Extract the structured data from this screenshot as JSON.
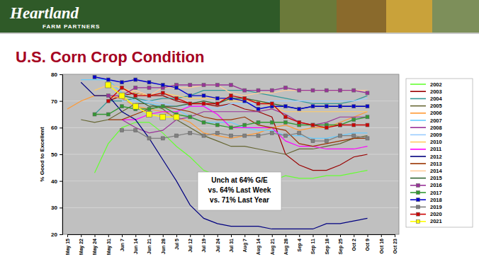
{
  "header": {
    "brand": "Heartland",
    "tagline": "FARM PARTNERS"
  },
  "chart_data": {
    "type": "line",
    "title": "U.S. Corn Crop Condition",
    "y_label": "% Good to Excellent",
    "categories": [
      "May 15",
      "May 22",
      "May 24",
      "May 31",
      "Jun 7",
      "Jun 14",
      "Jun 21",
      "Jun 28",
      "Jul 5",
      "Jul 12",
      "Jul 19",
      "Jul 24",
      "Jul 31",
      "Aug 7",
      "Aug 14",
      "Aug 21",
      "Aug 28",
      "Sep 4",
      "Sep 11",
      "Sep 18",
      "Sep 25",
      "Oct 2",
      "Oct 9",
      "Oct 16",
      "Oct 23"
    ],
    "series": [
      {
        "name": "2002",
        "color": "#66ff33",
        "values": [
          null,
          null,
          43,
          54,
          60,
          62,
          62,
          58,
          53,
          49,
          44,
          42,
          41,
          40,
          39,
          40,
          42,
          41,
          41,
          42,
          42,
          43,
          44,
          null,
          null
        ]
      },
      {
        "name": "2003",
        "color": "#990000",
        "values": [
          null,
          null,
          null,
          70,
          72,
          73,
          72,
          72,
          70,
          69,
          69,
          68,
          69,
          67,
          66,
          64,
          50,
          46,
          44,
          44,
          46,
          49,
          50,
          null,
          null
        ]
      },
      {
        "name": "2004",
        "color": "#339999",
        "values": [
          null,
          null,
          65,
          70,
          70,
          71,
          70,
          71,
          71,
          72,
          74,
          74,
          74,
          74,
          73,
          72,
          71,
          70,
          69,
          69,
          69,
          70,
          72,
          null,
          null
        ]
      },
      {
        "name": "2005",
        "color": "#666633",
        "values": [
          null,
          63,
          62,
          63,
          66,
          69,
          69,
          67,
          63,
          60,
          57,
          55,
          53,
          53,
          52,
          51,
          50,
          52,
          52,
          53,
          54,
          56,
          57,
          null,
          null
        ]
      },
      {
        "name": "2006",
        "color": "#ff9933",
        "values": [
          67,
          70,
          72,
          72,
          71,
          68,
          67,
          66,
          64,
          62,
          58,
          57,
          56,
          57,
          58,
          60,
          61,
          59,
          60,
          60,
          62,
          64,
          66,
          null,
          null
        ]
      },
      {
        "name": "2007",
        "color": "#66ccff",
        "values": [
          null,
          78,
          78,
          78,
          73,
          70,
          69,
          68,
          67,
          64,
          62,
          62,
          62,
          60,
          59,
          59,
          57,
          57,
          56,
          56,
          57,
          58,
          58,
          null,
          null
        ]
      },
      {
        "name": "2008",
        "color": "#993399",
        "values": [
          null,
          null,
          null,
          null,
          63,
          60,
          58,
          59,
          63,
          64,
          66,
          66,
          66,
          66,
          66,
          67,
          65,
          62,
          61,
          62,
          64,
          64,
          64,
          null,
          null
        ]
      },
      {
        "name": "2009",
        "color": "#99ccff",
        "values": [
          null,
          null,
          null,
          null,
          70,
          70,
          70,
          69,
          68,
          68,
          68,
          67,
          69,
          69,
          69,
          70,
          70,
          70,
          70,
          70,
          70,
          70,
          71,
          null,
          null
        ]
      },
      {
        "name": "2010",
        "color": "#ffcc66",
        "values": [
          null,
          null,
          74,
          76,
          75,
          73,
          72,
          73,
          72,
          71,
          71,
          71,
          70,
          70,
          70,
          68,
          66,
          66,
          66,
          66,
          66,
          66,
          66,
          null,
          null
        ]
      },
      {
        "name": "2011",
        "color": "#ff00ff",
        "values": [
          null,
          null,
          null,
          null,
          63,
          63,
          65,
          66,
          66,
          68,
          68,
          65,
          60,
          60,
          60,
          60,
          55,
          53,
          53,
          52,
          52,
          52,
          53,
          null,
          null
        ]
      },
      {
        "name": "2012",
        "color": "#000080",
        "values": [
          null,
          77,
          72,
          72,
          66,
          63,
          56,
          48,
          40,
          31,
          26,
          24,
          23,
          23,
          23,
          22,
          22,
          22,
          22,
          24,
          24,
          25,
          26,
          null,
          null
        ]
      },
      {
        "name": "2013",
        "color": "#993300",
        "values": [
          null,
          null,
          null,
          63,
          63,
          65,
          67,
          68,
          67,
          66,
          64,
          63,
          63,
          64,
          61,
          60,
          59,
          54,
          53,
          54,
          55,
          56,
          56,
          null,
          null
        ]
      },
      {
        "name": "2014",
        "color": "#ffcc99",
        "values": [
          null,
          null,
          null,
          null,
          74,
          74,
          72,
          75,
          75,
          75,
          76,
          76,
          73,
          72,
          73,
          73,
          74,
          74,
          74,
          74,
          74,
          74,
          74,
          null,
          null
        ]
      },
      {
        "name": "2015",
        "color": "#336633",
        "values": [
          null,
          null,
          null,
          null,
          72,
          71,
          68,
          68,
          68,
          69,
          70,
          69,
          71,
          71,
          70,
          69,
          68,
          67,
          68,
          68,
          68,
          68,
          68,
          null,
          null
        ]
      },
      {
        "name": "2016",
        "color": "#993399",
        "marker": "square",
        "values": [
          null,
          null,
          null,
          72,
          72,
          75,
          75,
          75,
          76,
          76,
          76,
          76,
          76,
          74,
          74,
          74,
          75,
          74,
          74,
          74,
          74,
          74,
          73,
          null,
          null
        ]
      },
      {
        "name": "2017",
        "color": "#339933",
        "marker": "square",
        "values": [
          null,
          null,
          65,
          65,
          68,
          67,
          67,
          68,
          65,
          64,
          62,
          61,
          60,
          61,
          62,
          62,
          62,
          61,
          61,
          61,
          61,
          63,
          64,
          null,
          null
        ]
      },
      {
        "name": "2018",
        "color": "#0000cc",
        "marker": "square",
        "values": [
          null,
          null,
          79,
          78,
          77,
          78,
          77,
          76,
          75,
          72,
          72,
          71,
          71,
          70,
          67,
          68,
          68,
          67,
          68,
          68,
          68,
          68,
          68,
          null,
          null
        ]
      },
      {
        "name": "2019",
        "color": "#808080",
        "marker": "square",
        "values": [
          null,
          null,
          null,
          null,
          59,
          59,
          56,
          56,
          57,
          58,
          57,
          58,
          57,
          57,
          57,
          58,
          57,
          58,
          55,
          55,
          57,
          57,
          56,
          null,
          null
        ]
      },
      {
        "name": "2020",
        "color": "#cc0000",
        "marker": "square",
        "values": [
          null,
          null,
          null,
          70,
          75,
          72,
          72,
          73,
          71,
          69,
          69,
          69,
          72,
          71,
          69,
          69,
          64,
          62,
          61,
          60,
          61,
          61,
          61,
          null,
          null
        ]
      },
      {
        "name": "2021",
        "color": "#ffff00",
        "marker": "square",
        "values": [
          null,
          null,
          null,
          76,
          72,
          68,
          65,
          64,
          64,
          null,
          null,
          null,
          null,
          null,
          null,
          null,
          null,
          null,
          null,
          null,
          null,
          null,
          null,
          null,
          null
        ]
      }
    ],
    "ylim": [
      20,
      80
    ],
    "yticks": [
      20,
      30,
      40,
      50,
      60,
      70,
      80
    ],
    "grid": true,
    "legend": "right",
    "annotations": [
      "Unch at 64% G/E",
      "vs. 64% Last Week",
      "vs. 71% Last Year"
    ]
  }
}
